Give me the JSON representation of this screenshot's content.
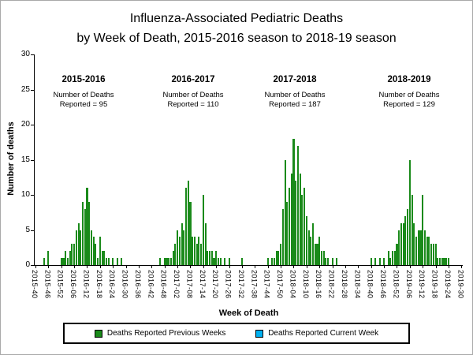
{
  "title_line1": "Influenza-Associated Pediatric Deaths",
  "title_line2": "by Week of Death, 2015-2016 season to 2018-19 season",
  "colors": {
    "previous_weeks": "#1A8A1A",
    "current_week": "#00B0F0"
  },
  "legend": {
    "previous_label": "Deaths Reported Previous Weeks",
    "current_label": "Deaths Reported Current Week"
  },
  "annotations": [
    {
      "season": "2015-2016",
      "line1": "Number of Deaths",
      "line2": "Reported = 95"
    },
    {
      "season": "2016-2017",
      "line1": "Number of Deaths",
      "line2": "Reported = 110"
    },
    {
      "season": "2017-2018",
      "line1": "Number of Deaths",
      "line2": "Reported = 187"
    },
    {
      "season": "2018-2019",
      "line1": "Number of Deaths",
      "line2": "Reported = 129"
    }
  ],
  "chart_data": {
    "type": "bar",
    "title": "Influenza-Associated Pediatric Deaths by Week of Death, 2015-2016 season to 2018-19 season",
    "xlabel": "Week of Death",
    "ylabel": "Number of deaths",
    "ylim": [
      0,
      30
    ],
    "yticks": [
      0,
      5,
      10,
      15,
      20,
      25,
      30
    ],
    "legend_position": "bottom",
    "grid": false,
    "tick_every": 6,
    "tick_labels": [
      "2015-40",
      "2015-46",
      "2015-52",
      "2016-06",
      "2016-12",
      "2016-18",
      "2016-24",
      "2016-30",
      "2016-36",
      "2016-42",
      "2016-48",
      "2017-02",
      "2017-08",
      "2017-14",
      "2017-20",
      "2017-26",
      "2017-32",
      "2017-38",
      "2017-44",
      "2017-50",
      "2018-04",
      "2018-10",
      "2018-16",
      "2018-22",
      "2018-28",
      "2018-34",
      "2018-40",
      "2018-46",
      "2018-52",
      "2019-06",
      "2019-12",
      "2019-18",
      "2019-24",
      "2019-30"
    ],
    "season_totals": [
      {
        "season": "2015-2016",
        "total": 95
      },
      {
        "season": "2016-2017",
        "total": 110
      },
      {
        "season": "2017-2018",
        "total": 187
      },
      {
        "season": "2018-2019",
        "total": 129
      }
    ],
    "series": [
      {
        "name": "Deaths Reported Previous Weeks",
        "values": [
          0,
          0,
          0,
          0,
          1,
          0,
          2,
          0,
          0,
          0,
          0,
          0,
          1,
          1,
          2,
          1,
          2,
          3,
          3,
          5,
          6,
          5,
          9,
          8,
          11,
          9,
          5,
          4,
          3,
          1,
          4,
          2,
          2,
          1,
          1,
          0,
          1,
          0,
          1,
          0,
          1,
          0,
          0,
          0,
          0,
          0,
          0,
          0,
          0,
          0,
          0,
          0,
          0,
          0,
          0,
          0,
          0,
          0,
          1,
          0,
          1,
          1,
          1,
          1,
          2,
          3,
          5,
          4,
          6,
          5,
          11,
          12,
          9,
          4,
          4,
          3,
          4,
          3,
          10,
          6,
          2,
          2,
          2,
          1,
          2,
          1,
          1,
          0,
          1,
          0,
          1,
          0,
          0,
          0,
          0,
          0,
          1,
          0,
          0,
          0,
          0,
          0,
          0,
          0,
          0,
          0,
          0,
          0,
          1,
          0,
          1,
          1,
          2,
          2,
          3,
          8,
          15,
          9,
          11,
          13,
          18,
          12,
          17,
          13,
          10,
          11,
          7,
          5,
          4,
          6,
          3,
          3,
          4,
          2,
          2,
          1,
          1,
          0,
          1,
          0,
          1,
          0,
          0,
          0,
          0,
          0,
          0,
          0,
          0,
          0,
          0,
          0,
          0,
          0,
          0,
          0,
          1,
          0,
          1,
          0,
          1,
          0,
          1,
          0,
          2,
          1,
          2,
          2,
          3,
          5,
          6,
          6,
          7,
          8,
          15,
          10,
          6,
          4,
          5,
          5,
          10,
          5,
          4,
          4,
          3,
          3,
          3,
          1,
          1,
          1,
          1,
          1,
          1,
          0,
          0,
          0,
          0,
          0,
          0
        ]
      }
    ]
  }
}
